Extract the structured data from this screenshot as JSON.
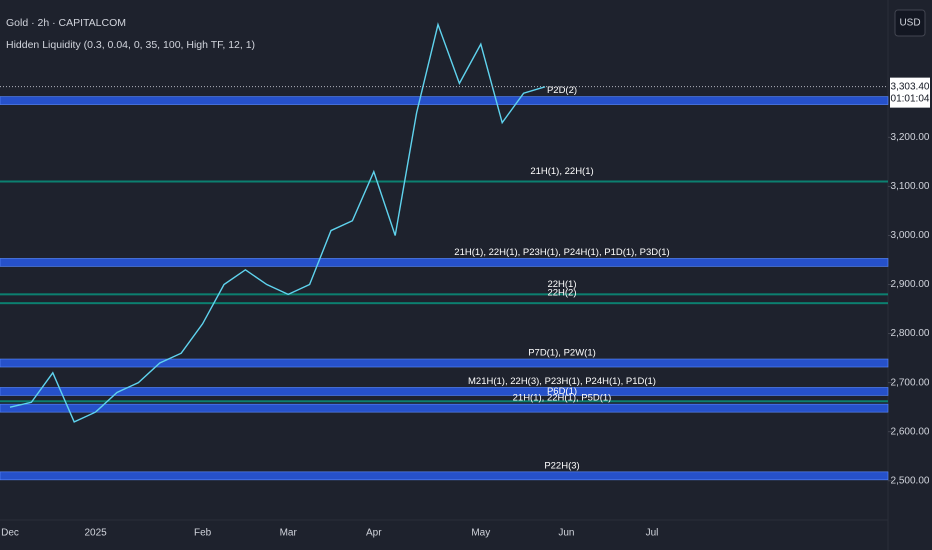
{
  "chart_data": {
    "type": "line",
    "title": "Gold · 2h · CAPITALCOM",
    "subtitle": "Hidden Liquidity (0.3, 0.04, 0, 35, 100, High TF, 12, 1)",
    "currency": "USD",
    "countdown": "01:01:04",
    "last_price": {
      "value": 3303.4,
      "label": "3,303.40"
    },
    "categories": [
      "Dec",
      null,
      null,
      null,
      "2025",
      null,
      null,
      null,
      null,
      "Feb",
      null,
      null,
      null,
      "Mar",
      null,
      null,
      null,
      "Apr",
      null,
      null,
      null,
      null,
      "May",
      null,
      null,
      null,
      "Jun",
      null,
      null,
      null,
      "Jul",
      null
    ],
    "series": [
      {
        "name": "Gold",
        "color": "#5fd3ee",
        "values": [
          2650,
          2660,
          2720,
          2620,
          2640,
          2680,
          2700,
          2740,
          2760,
          2820,
          2900,
          2930,
          2900,
          2880,
          2900,
          3010,
          3030,
          3130,
          3000,
          3250,
          3430,
          3310,
          3390,
          3230,
          3290,
          3303,
          null,
          null,
          null,
          null,
          null,
          null
        ]
      }
    ],
    "zones": [
      {
        "name": "P2D(2)",
        "value": 3275,
        "color": "#2962ff"
      },
      {
        "name": "21H(1), 22H(1)",
        "value": 3110,
        "color": "#089981"
      },
      {
        "name": "21H(1), 22H(1), P23H(1), P24H(1), P1D(1), P3D(1)",
        "value": 2945,
        "color": "#2962ff"
      },
      {
        "name": "22H(1)",
        "value": 2880,
        "color": "#089981"
      },
      {
        "name": "22H(2)",
        "value": 2862,
        "color": "#089981"
      },
      {
        "name": "P7D(1), P2W(1)",
        "value": 2740,
        "color": "#2962ff"
      },
      {
        "name": "M21H(1), 22H(3), P23H(1), P24H(1), P1D(1)",
        "value": 2682,
        "color": "#2962ff"
      },
      {
        "name": "P6D(1)",
        "value": 2662,
        "color": "#089981"
      },
      {
        "name": "21H(1), 22H(1), P5D(1)",
        "value": 2648,
        "color": "#2962ff"
      },
      {
        "name": "P22H(3)",
        "value": 2510,
        "color": "#2962ff"
      }
    ],
    "ylim": [
      2420,
      3480
    ],
    "yticks": [
      {
        "value": 2500,
        "label": "2,500.00"
      },
      {
        "value": 2600,
        "label": "2,600.00"
      },
      {
        "value": 2700,
        "label": "2,700.00"
      },
      {
        "value": 2800,
        "label": "2,800.00"
      },
      {
        "value": 2900,
        "label": "2,900.00"
      },
      {
        "value": 3000,
        "label": "3,000.00"
      },
      {
        "value": 3100,
        "label": "3,100.00"
      },
      {
        "value": 3200,
        "label": "3,200.00"
      }
    ]
  }
}
